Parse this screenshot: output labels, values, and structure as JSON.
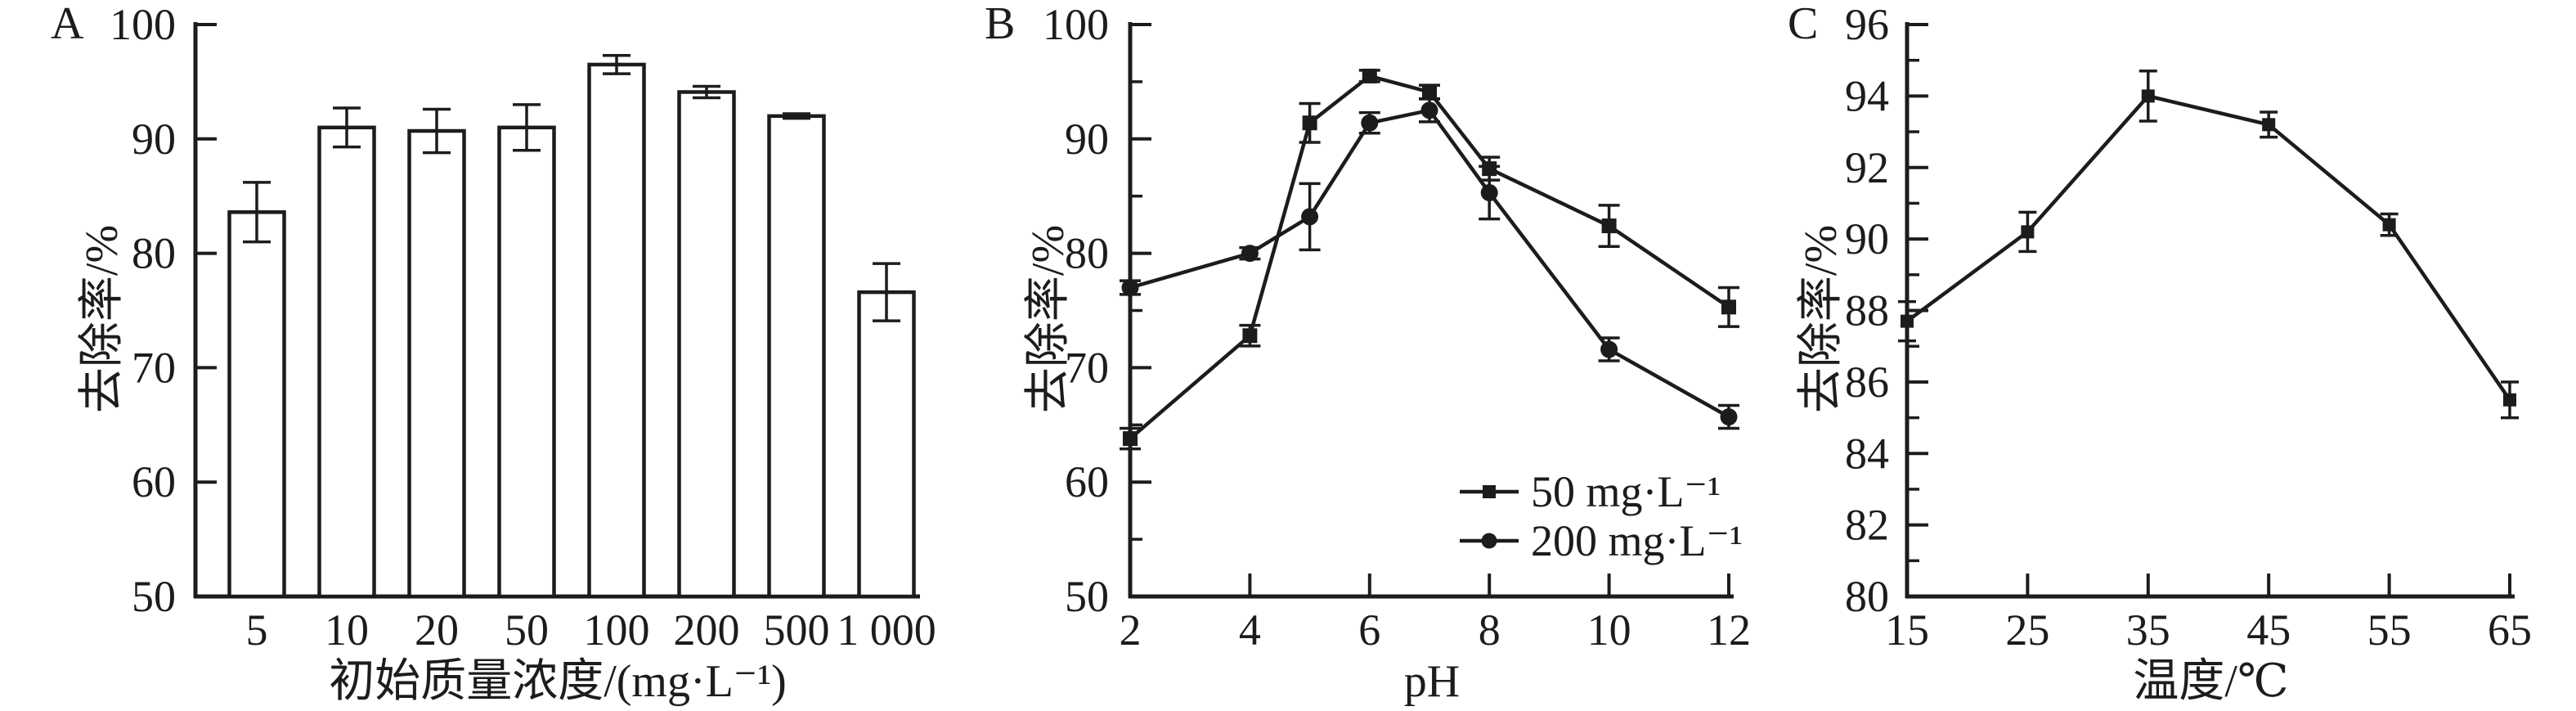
{
  "figure": {
    "background": "#ffffff",
    "ink": "#1c1c1c",
    "description_visible_text_only": true,
    "panels": [
      "A",
      "B",
      "C"
    ]
  },
  "chart_data": [
    {
      "id": "A",
      "panel_label": "A",
      "type": "bar",
      "xlabel": "初始质量浓度/(mg·L⁻¹)",
      "ylabel": "去除率/%",
      "ylim": [
        50,
        100
      ],
      "yticks": [
        50,
        60,
        70,
        80,
        90,
        100
      ],
      "grid": false,
      "categories": [
        "5",
        "10",
        "20",
        "50",
        "100",
        "200",
        "500",
        "1 000"
      ],
      "values": [
        83.6,
        91.0,
        90.7,
        91.0,
        96.5,
        94.1,
        92.0,
        76.6
      ],
      "errors": [
        2.6,
        1.7,
        1.9,
        2.0,
        0.8,
        0.5,
        0.2,
        2.5
      ],
      "bar_fill": "#ffffff",
      "bar_stroke": "#1c1c1c"
    },
    {
      "id": "B",
      "panel_label": "B",
      "type": "line",
      "xlabel": "pH",
      "ylabel": "去除率/%",
      "ylim": [
        50,
        100
      ],
      "yticks": [
        50,
        60,
        70,
        80,
        90,
        100
      ],
      "y_minor_step": 5,
      "xlim": [
        2,
        12
      ],
      "xticks": [
        2,
        4,
        6,
        8,
        10,
        12
      ],
      "x": [
        2,
        4,
        5,
        6,
        7,
        8,
        10,
        12
      ],
      "grid": false,
      "series": [
        {
          "name": "50 mg·L⁻¹",
          "marker": "square",
          "values": [
            63.8,
            72.8,
            91.4,
            95.5,
            94.1,
            87.4,
            82.4,
            75.3
          ],
          "errors": [
            0.9,
            0.9,
            1.7,
            0.5,
            0.6,
            1.0,
            1.8,
            1.7
          ]
        },
        {
          "name": "200 mg·L⁻¹",
          "marker": "circle",
          "values": [
            77.0,
            80.0,
            83.2,
            91.4,
            92.5,
            85.3,
            71.6,
            65.7
          ],
          "errors": [
            0.6,
            0.5,
            2.9,
            0.9,
            1.0,
            2.3,
            1.0,
            1.0
          ]
        }
      ],
      "legend_position": "bottom-right"
    },
    {
      "id": "C",
      "panel_label": "C",
      "type": "line",
      "xlabel": "温度/℃",
      "ylabel": "去除率/%",
      "ylim": [
        80,
        96
      ],
      "yticks": [
        80,
        82,
        84,
        86,
        88,
        90,
        92,
        94,
        96
      ],
      "y_minor_step": 1,
      "xlim": [
        15,
        65
      ],
      "xticks": [
        15,
        25,
        35,
        45,
        55,
        65
      ],
      "x": [
        15,
        25,
        35,
        45,
        55,
        65
      ],
      "grid": false,
      "series": [
        {
          "name": "",
          "marker": "square",
          "values": [
            87.7,
            90.2,
            94.0,
            93.2,
            90.4,
            85.5
          ],
          "errors": [
            0.55,
            0.55,
            0.7,
            0.35,
            0.3,
            0.5
          ]
        }
      ],
      "legend_position": "none"
    }
  ]
}
